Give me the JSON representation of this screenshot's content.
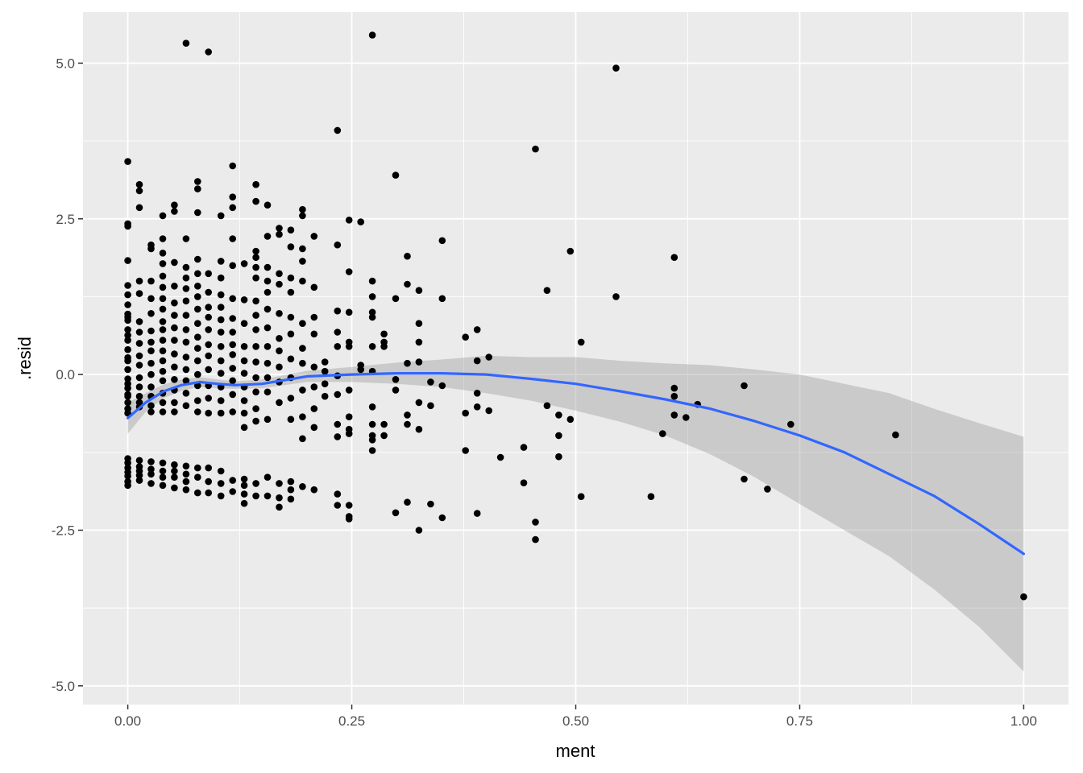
{
  "chart_data": {
    "type": "scatter",
    "title": "",
    "xlabel": "ment",
    "ylabel": ".resid",
    "xlim": [
      -0.05,
      1.05
    ],
    "ylim": [
      -5.3,
      5.82
    ],
    "x_ticks": [
      0.0,
      0.25,
      0.5,
      0.75,
      1.0
    ],
    "x_tick_labels": [
      "0.00",
      "0.25",
      "0.50",
      "0.75",
      "1.00"
    ],
    "y_ticks": [
      -5.0,
      -2.5,
      0.0,
      2.5,
      5.0
    ],
    "y_tick_labels": [
      "-5.0",
      "-2.5",
      "0.0",
      "2.5",
      "5.0"
    ],
    "grid": true,
    "legend": "none",
    "colors": {
      "panel": "#ebebeb",
      "grid": "#ffffff",
      "points": "#000000",
      "smooth_line": "#3366ff",
      "ribbon": "#999999"
    },
    "points": {
      "x": [
        0.0,
        0.0,
        0.0,
        0.0,
        0.0,
        0.0,
        0.0,
        0.0,
        0.0,
        0.0,
        0.0,
        0.0,
        0.0,
        0.0,
        0.0,
        0.0,
        0.0,
        0.0,
        0.0,
        0.0,
        0.0,
        0.0,
        0.0,
        0.0,
        0.0,
        0.0,
        0.0,
        0.0,
        0.0,
        0.0,
        0.0,
        0.0,
        0.013,
        0.013,
        0.013,
        0.013,
        0.013,
        0.013,
        0.013,
        0.013,
        0.013,
        0.013,
        0.013,
        0.013,
        0.013,
        0.013,
        0.013,
        0.013,
        0.013,
        0.013,
        0.013,
        0.013,
        0.026,
        0.026,
        0.026,
        0.026,
        0.026,
        0.026,
        0.026,
        0.026,
        0.026,
        0.026,
        0.026,
        0.026,
        0.026,
        0.026,
        0.026,
        0.026,
        0.026,
        0.026,
        0.039,
        0.039,
        0.039,
        0.039,
        0.039,
        0.039,
        0.039,
        0.039,
        0.039,
        0.039,
        0.039,
        0.039,
        0.039,
        0.039,
        0.039,
        0.039,
        0.039,
        0.039,
        0.039,
        0.039,
        0.039,
        0.039,
        0.052,
        0.052,
        0.052,
        0.052,
        0.052,
        0.052,
        0.052,
        0.052,
        0.052,
        0.052,
        0.052,
        0.052,
        0.052,
        0.052,
        0.052,
        0.052,
        0.052,
        0.052,
        0.065,
        0.065,
        0.065,
        0.065,
        0.065,
        0.065,
        0.065,
        0.065,
        0.065,
        0.065,
        0.065,
        0.065,
        0.065,
        0.065,
        0.065,
        0.065,
        0.065,
        0.065,
        0.078,
        0.078,
        0.078,
        0.078,
        0.078,
        0.078,
        0.078,
        0.078,
        0.078,
        0.078,
        0.078,
        0.078,
        0.078,
        0.078,
        0.078,
        0.078,
        0.078,
        0.078,
        0.078,
        0.09,
        0.09,
        0.09,
        0.09,
        0.09,
        0.09,
        0.09,
        0.09,
        0.09,
        0.09,
        0.09,
        0.09,
        0.09,
        0.09,
        0.09,
        0.104,
        0.104,
        0.104,
        0.104,
        0.104,
        0.104,
        0.104,
        0.104,
        0.104,
        0.104,
        0.104,
        0.104,
        0.104,
        0.104,
        0.104,
        0.104,
        0.117,
        0.117,
        0.117,
        0.117,
        0.117,
        0.117,
        0.117,
        0.117,
        0.117,
        0.117,
        0.117,
        0.117,
        0.117,
        0.117,
        0.117,
        0.117,
        0.13,
        0.13,
        0.13,
        0.13,
        0.13,
        0.13,
        0.13,
        0.13,
        0.13,
        0.13,
        0.13,
        0.13,
        0.13,
        0.13,
        0.143,
        0.143,
        0.143,
        0.143,
        0.143,
        0.143,
        0.143,
        0.143,
        0.143,
        0.143,
        0.143,
        0.143,
        0.143,
        0.143,
        0.143,
        0.143,
        0.143,
        0.156,
        0.156,
        0.156,
        0.156,
        0.156,
        0.156,
        0.156,
        0.156,
        0.156,
        0.156,
        0.156,
        0.156,
        0.156,
        0.156,
        0.169,
        0.169,
        0.169,
        0.169,
        0.169,
        0.169,
        0.169,
        0.169,
        0.169,
        0.169,
        0.169,
        0.169,
        0.169,
        0.182,
        0.182,
        0.182,
        0.182,
        0.182,
        0.182,
        0.182,
        0.182,
        0.182,
        0.182,
        0.182,
        0.182,
        0.182,
        0.195,
        0.195,
        0.195,
        0.195,
        0.195,
        0.195,
        0.195,
        0.195,
        0.195,
        0.195,
        0.195,
        0.195,
        0.208,
        0.208,
        0.208,
        0.208,
        0.208,
        0.208,
        0.208,
        0.208,
        0.208,
        0.22,
        0.22,
        0.22,
        0.22,
        0.234,
        0.234,
        0.234,
        0.234,
        0.234,
        0.234,
        0.234,
        0.234,
        0.234,
        0.234,
        0.234,
        0.247,
        0.247,
        0.247,
        0.247,
        0.247,
        0.247,
        0.247,
        0.247,
        0.247,
        0.247,
        0.247,
        0.247,
        0.26,
        0.26,
        0.26,
        0.273,
        0.273,
        0.273,
        0.273,
        0.273,
        0.273,
        0.273,
        0.273,
        0.273,
        0.273,
        0.273,
        0.273,
        0.286,
        0.286,
        0.286,
        0.286,
        0.286,
        0.299,
        0.299,
        0.299,
        0.299,
        0.299,
        0.312,
        0.312,
        0.312,
        0.312,
        0.312,
        0.312,
        0.325,
        0.325,
        0.325,
        0.325,
        0.325,
        0.325,
        0.325,
        0.338,
        0.338,
        0.338,
        0.351,
        0.351,
        0.351,
        0.351,
        0.377,
        0.377,
        0.377,
        0.39,
        0.39,
        0.39,
        0.39,
        0.39,
        0.403,
        0.403,
        0.416,
        0.442,
        0.442,
        0.455,
        0.455,
        0.455,
        0.468,
        0.468,
        0.481,
        0.481,
        0.481,
        0.494,
        0.494,
        0.506,
        0.506,
        0.545,
        0.545,
        0.584,
        0.597,
        0.61,
        0.61,
        0.61,
        0.61,
        0.623,
        0.636,
        0.688,
        0.688,
        0.714,
        0.74,
        0.857,
        1.0
      ],
      "y": [
        3.42,
        2.42,
        2.38,
        1.83,
        1.43,
        1.28,
        1.12,
        0.97,
        0.87,
        0.72,
        0.55,
        0.4,
        0.27,
        0.08,
        -0.07,
        -0.22,
        -0.32,
        -0.45,
        -0.55,
        -0.62,
        -1.35,
        -1.42,
        -1.5,
        -1.57,
        -1.63,
        -1.72,
        -1.78,
        -0.15,
        0.22,
        0.92,
        0.63,
        -0.35,
        3.05,
        2.95,
        2.68,
        1.5,
        1.3,
        0.85,
        0.68,
        0.5,
        0.3,
        0.15,
        -0.05,
        -0.2,
        -0.35,
        -0.45,
        -0.52,
        -1.38,
        -1.48,
        -1.55,
        -1.62,
        -1.7,
        2.08,
        2.02,
        1.5,
        1.22,
        0.98,
        0.7,
        0.52,
        0.38,
        0.18,
        0.0,
        -0.2,
        -0.35,
        -0.5,
        -0.6,
        -1.4,
        -1.52,
        -1.6,
        -1.75,
        2.55,
        2.18,
        1.95,
        1.78,
        1.58,
        1.4,
        1.22,
        1.05,
        0.85,
        0.72,
        0.55,
        0.38,
        0.22,
        0.05,
        -0.1,
        -0.3,
        -0.45,
        -0.6,
        -1.42,
        -1.55,
        -1.65,
        -1.78,
        2.72,
        2.62,
        1.8,
        1.42,
        1.15,
        0.95,
        0.75,
        0.55,
        0.33,
        0.12,
        -0.08,
        -0.25,
        -0.45,
        -0.6,
        -1.45,
        -1.55,
        -1.65,
        -1.82,
        5.32,
        2.18,
        1.72,
        1.55,
        1.38,
        1.18,
        0.95,
        0.72,
        0.52,
        0.28,
        0.08,
        -0.1,
        -0.3,
        -0.5,
        -1.47,
        -1.6,
        -1.72,
        -1.85,
        3.1,
        2.98,
        2.6,
        1.85,
        1.62,
        1.42,
        1.25,
        1.05,
        0.82,
        0.6,
        0.42,
        0.22,
        0.0,
        -0.18,
        -0.42,
        -0.6,
        -1.5,
        -1.65,
        -1.9,
        5.18,
        1.62,
        1.32,
        1.08,
        0.92,
        0.72,
        0.48,
        0.3,
        0.08,
        -0.18,
        -0.38,
        -0.62,
        -1.5,
        -1.72,
        -1.9,
        2.55,
        1.82,
        1.55,
        1.28,
        1.08,
        0.88,
        0.68,
        0.45,
        0.22,
        0.02,
        -0.2,
        -0.42,
        -0.62,
        -1.55,
        -1.75,
        -1.95,
        3.35,
        2.85,
        2.68,
        2.18,
        1.75,
        1.22,
        0.9,
        0.68,
        0.48,
        0.32,
        0.1,
        -0.1,
        -0.32,
        -0.6,
        -1.7,
        -1.88,
        1.78,
        1.2,
        0.82,
        0.45,
        0.22,
        0.02,
        -0.2,
        -0.42,
        -0.62,
        -0.85,
        -1.68,
        -1.78,
        -1.92,
        -2.07,
        3.05,
        2.78,
        1.98,
        1.88,
        1.72,
        1.55,
        1.18,
        0.95,
        0.72,
        0.45,
        0.2,
        -0.05,
        -0.28,
        -0.55,
        -0.75,
        -1.75,
        -1.95,
        2.72,
        2.22,
        1.72,
        1.5,
        1.32,
        1.05,
        0.75,
        0.45,
        0.18,
        -0.05,
        -0.28,
        -0.72,
        -1.65,
        -1.95,
        2.35,
        2.25,
        1.62,
        1.45,
        0.98,
        0.58,
        0.38,
        0.12,
        -0.12,
        -0.45,
        -1.75,
        -1.98,
        -2.13,
        2.32,
        2.05,
        1.55,
        1.32,
        0.92,
        0.65,
        0.25,
        -0.05,
        -0.38,
        -0.72,
        -1.72,
        -1.85,
        -2.0,
        2.65,
        2.55,
        2.02,
        1.82,
        1.5,
        0.82,
        0.42,
        0.18,
        -0.25,
        -0.68,
        -1.03,
        -1.8,
        2.22,
        1.4,
        0.92,
        0.65,
        0.12,
        -0.2,
        -0.55,
        -0.85,
        -1.85,
        0.2,
        0.05,
        -0.15,
        -0.35,
        3.92,
        2.08,
        1.02,
        0.68,
        0.45,
        -0.02,
        -0.32,
        -0.8,
        -1.0,
        -1.92,
        -2.1,
        2.48,
        1.65,
        1.0,
        0.52,
        0.45,
        -0.25,
        -0.68,
        -0.88,
        -0.95,
        -2.1,
        -2.28,
        -2.32,
        2.45,
        0.15,
        0.08,
        5.45,
        1.5,
        1.25,
        1.0,
        0.92,
        0.45,
        0.05,
        -0.52,
        -0.8,
        -0.98,
        -1.05,
        -1.22,
        0.65,
        0.52,
        0.45,
        -0.8,
        -0.98,
        3.2,
        1.22,
        -0.08,
        -0.25,
        -2.22,
        1.9,
        1.45,
        0.18,
        -0.65,
        -0.8,
        -2.05,
        1.35,
        0.82,
        0.52,
        0.2,
        -0.45,
        -0.88,
        -2.5,
        -0.12,
        -0.5,
        -2.08,
        2.15,
        1.22,
        -0.18,
        -2.3,
        0.6,
        -0.62,
        -1.22,
        0.72,
        0.22,
        -0.3,
        -0.52,
        -2.23,
        0.28,
        -0.58,
        -1.33,
        -1.17,
        -1.74,
        3.62,
        -2.37,
        -2.65,
        1.35,
        -0.5,
        -0.65,
        -0.98,
        -1.32,
        1.98,
        -0.72,
        0.52,
        -1.96,
        4.92,
        1.25,
        -1.96,
        -0.95,
        1.88,
        -0.22,
        -0.35,
        -0.65,
        -0.69,
        -0.48,
        -0.18,
        -1.68,
        -1.84,
        -0.8,
        -0.97,
        -3.57
      ]
    },
    "smooth": {
      "x": [
        0.0,
        0.02,
        0.04,
        0.06,
        0.08,
        0.1,
        0.12,
        0.15,
        0.2,
        0.25,
        0.3,
        0.35,
        0.4,
        0.45,
        0.5,
        0.55,
        0.6,
        0.65,
        0.7,
        0.75,
        0.8,
        0.85,
        0.9,
        0.95,
        1.0
      ],
      "y": [
        -0.7,
        -0.45,
        -0.27,
        -0.17,
        -0.12,
        -0.15,
        -0.17,
        -0.15,
        -0.03,
        0.0,
        0.02,
        0.02,
        0.0,
        -0.07,
        -0.15,
        -0.27,
        -0.4,
        -0.55,
        -0.75,
        -0.98,
        -1.25,
        -1.6,
        -1.95,
        -2.4,
        -2.88
      ],
      "ymin": [
        -0.95,
        -0.6,
        -0.38,
        -0.26,
        -0.2,
        -0.22,
        -0.23,
        -0.22,
        -0.12,
        -0.12,
        -0.15,
        -0.2,
        -0.3,
        -0.42,
        -0.58,
        -0.76,
        -0.98,
        -1.28,
        -1.65,
        -2.08,
        -2.5,
        -2.92,
        -3.45,
        -4.05,
        -4.77
      ],
      "ymax": [
        -0.45,
        -0.3,
        -0.16,
        -0.08,
        -0.04,
        -0.08,
        -0.11,
        -0.08,
        0.06,
        0.12,
        0.19,
        0.24,
        0.3,
        0.28,
        0.28,
        0.22,
        0.18,
        0.15,
        0.08,
        0.0,
        -0.15,
        -0.3,
        -0.55,
        -0.78,
        -1.0
      ]
    }
  }
}
